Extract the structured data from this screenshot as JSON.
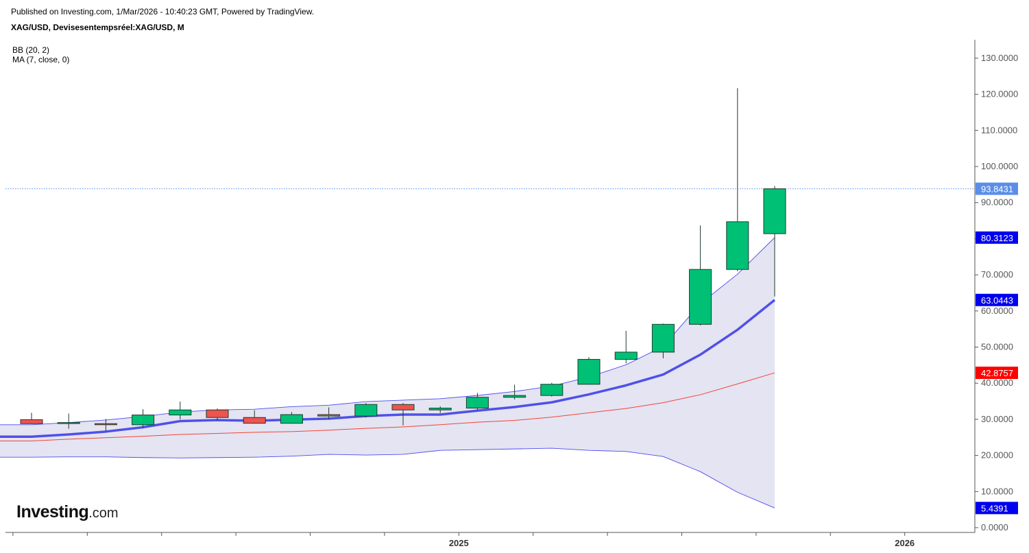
{
  "header": {
    "published": "Published on Investing.com, 1/Mar/2026 - 10:40:23 GMT, Powered by TradingView.",
    "symbol": "XAG/USD, Devisesentempsréel:XAG/USD, M"
  },
  "indicators": {
    "bb_label": "BB (20, 2)",
    "ma_label": "MA (7, close, 0)"
  },
  "logo": {
    "main": "Investing",
    "suffix": ".com"
  },
  "colors": {
    "up": "#00c076",
    "down": "#ef5350",
    "bb_band": "#4b4bf0",
    "bb_fill": "#e4e4f2",
    "bb_basis": "#f44336",
    "ma": "#5050e8",
    "last_price_tag": "#5b8ee6",
    "bb_upper_tag": "#0000ee",
    "ma_tag": "#0000ee",
    "bb_basis_tag": "#ff0000",
    "bb_lower_tag": "#0000ee"
  },
  "chart_data": {
    "type": "candlestick",
    "timeframe": "Monthly",
    "ylim": [
      0,
      130
    ],
    "y_ticks": [
      0,
      10,
      20,
      30,
      40,
      50,
      60,
      70,
      80,
      90,
      100,
      110,
      120,
      130
    ],
    "y_tick_labels": [
      "0.0000",
      "10.0000",
      "20.0000",
      "30.0000",
      "40.0000",
      "50.0000",
      "60.0000",
      "70.0000",
      "80.0000",
      "90.0000",
      "100.0000",
      "110.0000",
      "120.0000",
      "130.0000"
    ],
    "x_labels": [
      {
        "index": 11.5,
        "label": "2025"
      },
      {
        "index": 23.5,
        "label": "2026"
      }
    ],
    "candles": [
      {
        "o": 29.9,
        "h": 31.8,
        "l": 28.7,
        "c": 28.8
      },
      {
        "o": 29.0,
        "h": 31.6,
        "l": 27.4,
        "c": 29.1
      },
      {
        "o": 28.8,
        "h": 30.1,
        "l": 26.7,
        "c": 28.5
      },
      {
        "o": 28.5,
        "h": 32.8,
        "l": 27.6,
        "c": 31.2
      },
      {
        "o": 31.2,
        "h": 34.9,
        "l": 30.0,
        "c": 32.6
      },
      {
        "o": 32.6,
        "h": 33.0,
        "l": 29.7,
        "c": 30.5
      },
      {
        "o": 30.5,
        "h": 32.5,
        "l": 28.8,
        "c": 28.9
      },
      {
        "o": 28.9,
        "h": 32.0,
        "l": 28.8,
        "c": 31.3
      },
      {
        "o": 31.3,
        "h": 33.3,
        "l": 30.0,
        "c": 30.9
      },
      {
        "o": 30.9,
        "h": 34.5,
        "l": 30.5,
        "c": 34.1
      },
      {
        "o": 34.1,
        "h": 34.5,
        "l": 28.3,
        "c": 32.6
      },
      {
        "o": 32.6,
        "h": 33.6,
        "l": 31.7,
        "c": 33.1
      },
      {
        "o": 33.1,
        "h": 37.3,
        "l": 32.5,
        "c": 36.1
      },
      {
        "o": 36.1,
        "h": 39.6,
        "l": 35.5,
        "c": 36.6
      },
      {
        "o": 36.6,
        "h": 40.1,
        "l": 36.3,
        "c": 39.7
      },
      {
        "o": 39.7,
        "h": 47.2,
        "l": 39.6,
        "c": 46.6
      },
      {
        "o": 46.6,
        "h": 54.5,
        "l": 45.5,
        "c": 48.6
      },
      {
        "o": 48.6,
        "h": 56.5,
        "l": 46.9,
        "c": 56.3
      },
      {
        "o": 56.3,
        "h": 83.7,
        "l": 56.0,
        "c": 71.5
      },
      {
        "o": 71.5,
        "h": 121.7,
        "l": 71.0,
        "c": 84.7
      },
      {
        "o": 81.4,
        "h": 94.6,
        "l": 64.0,
        "c": 93.84
      }
    ],
    "bb_upper": [
      28.5,
      29.1,
      29.8,
      30.8,
      32.0,
      32.6,
      32.8,
      33.5,
      33.9,
      34.9,
      35.3,
      35.7,
      36.6,
      37.7,
      39.2,
      41.7,
      45.1,
      50.2,
      62.0,
      70.2,
      80.3123
    ],
    "bb_basis": [
      24.0,
      24.5,
      24.9,
      25.3,
      25.8,
      26.1,
      26.4,
      26.6,
      27.0,
      27.5,
      27.9,
      28.5,
      29.2,
      29.7,
      30.6,
      31.8,
      33.0,
      34.6,
      36.8,
      39.8,
      42.8757
    ],
    "bb_lower": [
      19.5,
      19.6,
      19.6,
      19.4,
      19.3,
      19.4,
      19.5,
      19.8,
      20.3,
      20.1,
      20.3,
      21.4,
      21.6,
      21.8,
      22.0,
      21.4,
      21.1,
      19.7,
      15.5,
      9.8,
      5.4391
    ],
    "ma": [
      25.2,
      25.8,
      26.6,
      27.8,
      29.5,
      29.8,
      29.6,
      29.9,
      30.2,
      30.9,
      31.3,
      31.3,
      32.4,
      33.4,
      34.7,
      36.9,
      39.4,
      42.4,
      47.9,
      54.8,
      63.0443
    ],
    "last_price": 93.8431,
    "value_tags": [
      {
        "label": "93.8431",
        "value": 93.8431,
        "color_key": "last_price_tag"
      },
      {
        "label": "80.3123",
        "value": 80.3123,
        "color_key": "bb_upper_tag"
      },
      {
        "label": "63.0443",
        "value": 63.0443,
        "color_key": "ma_tag"
      },
      {
        "label": "42.8757",
        "value": 42.8757,
        "color_key": "bb_basis_tag"
      },
      {
        "label": "5.4391",
        "value": 5.4391,
        "color_key": "bb_lower_tag"
      }
    ]
  }
}
